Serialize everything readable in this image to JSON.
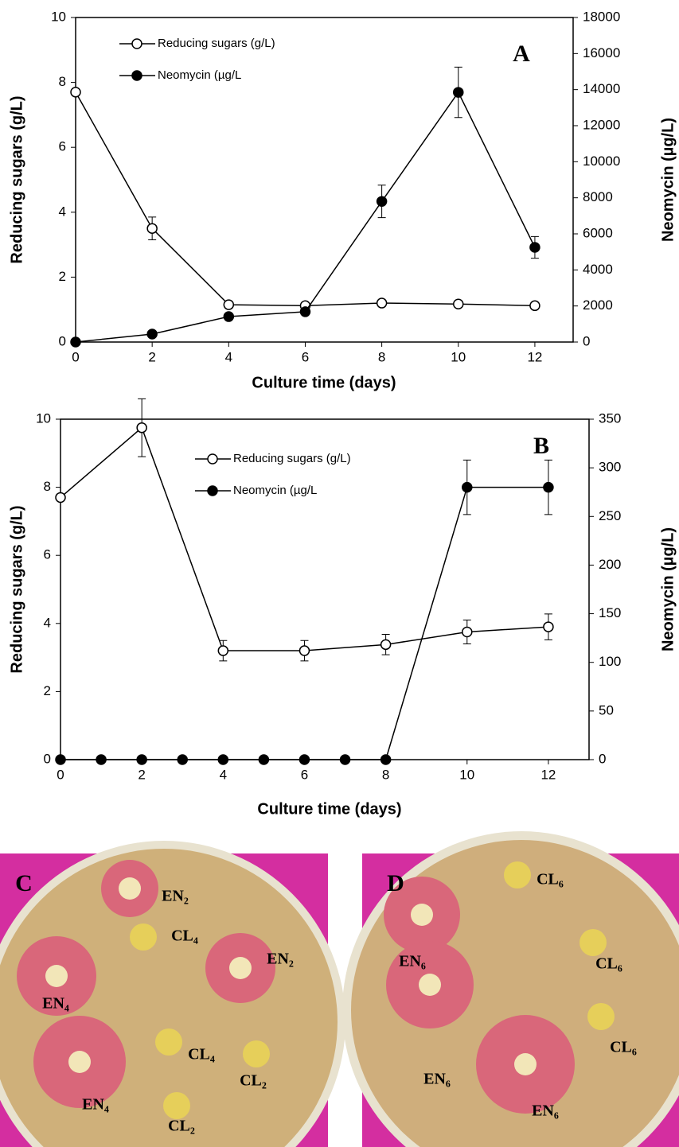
{
  "chart_data": [
    {
      "type": "line",
      "panel": "A",
      "x_label": "Culture time (days)",
      "y_label": "Reducing sugars (g/L)",
      "y2_label": "Neomycin (µg/L)",
      "xlim": [
        0,
        13
      ],
      "xticks": [
        0,
        2,
        4,
        6,
        8,
        10,
        12
      ],
      "ylim": [
        0,
        10
      ],
      "yticks": [
        0,
        2,
        4,
        6,
        8,
        10
      ],
      "y2lim": [
        0,
        18000
      ],
      "y2ticks": [
        0,
        2000,
        4000,
        6000,
        8000,
        10000,
        12000,
        14000,
        16000,
        18000
      ],
      "series": [
        {
          "name": "Reducing sugars (g/L)",
          "color": "#000000",
          "marker": "open",
          "x": [
            0,
            2,
            4,
            6,
            8,
            10,
            12
          ],
          "values": [
            7.7,
            3.5,
            1.15,
            1.12,
            1.2,
            1.17,
            1.12
          ],
          "errors": [
            0.1,
            0.35,
            0.1,
            0.1,
            0.1,
            0.1,
            0.1
          ]
        },
        {
          "name": "Neomycin (µg/L",
          "color": "#000000",
          "marker": "filled",
          "axis": "y2",
          "x": [
            0,
            2,
            4,
            6,
            8,
            10,
            12
          ],
          "values": [
            0,
            440,
            1410,
            1680,
            7800,
            13850,
            5250
          ],
          "errors": [
            0,
            0,
            0,
            0,
            900,
            1400,
            600
          ]
        }
      ]
    },
    {
      "type": "line",
      "panel": "B",
      "x_label": "Culture time (days)",
      "y_label": "Reducing sugars (g/L)",
      "y2_label": "Neomycin (µg/L)",
      "xlim": [
        0,
        13
      ],
      "xticks": [
        0,
        2,
        4,
        6,
        8,
        10,
        12
      ],
      "ylim": [
        0,
        10
      ],
      "yticks": [
        0,
        2,
        4,
        6,
        8,
        10
      ],
      "y2lim": [
        0,
        350
      ],
      "y2ticks": [
        0,
        50,
        100,
        150,
        200,
        250,
        300,
        350
      ],
      "series": [
        {
          "name": "Reducing sugars (g/L)",
          "color": "#000000",
          "marker": "open",
          "x": [
            0,
            2,
            4,
            6,
            8,
            10,
            12
          ],
          "values": [
            7.7,
            9.75,
            3.2,
            3.2,
            3.38,
            3.75,
            3.9
          ],
          "errors": [
            0,
            0.85,
            0.3,
            0.3,
            0.3,
            0.35,
            0.38
          ]
        },
        {
          "name": "Neomycin (µg/L",
          "color": "#000000",
          "marker": "filled",
          "axis": "y2",
          "x": [
            0,
            1,
            2,
            3,
            4,
            5,
            6,
            7,
            8,
            10,
            12
          ],
          "values": [
            0,
            0,
            0,
            0,
            0,
            0,
            0,
            0,
            0,
            280,
            280
          ],
          "errors": [
            0,
            0,
            0,
            0,
            0,
            0,
            0,
            0,
            0,
            28,
            28
          ]
        }
      ]
    }
  ],
  "photos": [
    {
      "panel": "C",
      "labels": [
        "EN₂",
        "CL₄",
        "EN₂",
        "EN₄",
        "CL₄",
        "CL₂",
        "EN₄",
        "CL₂"
      ]
    },
    {
      "panel": "D",
      "labels": [
        "CL₆",
        "EN₆",
        "CL₆",
        "EN₆",
        "CL₆",
        "EN₆"
      ]
    }
  ]
}
